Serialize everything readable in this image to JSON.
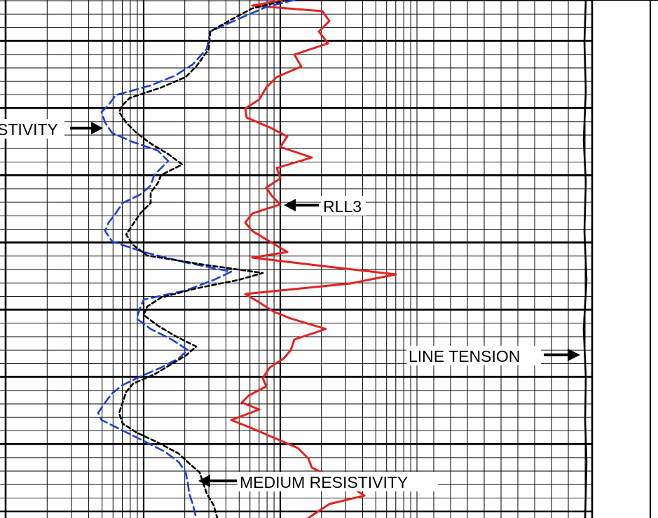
{
  "chart_data": {
    "type": "line",
    "annotations": {
      "deep": "STIVITY",
      "rll3": "RLL3",
      "tension": "LINE TENSION",
      "medium": "MEDIUM RESISTIVITY"
    },
    "series": [
      {
        "key": "rll3",
        "name": "RLL3",
        "color": "#e3231f",
        "style": "solid",
        "points": [
          [
            0,
            405
          ],
          [
            8,
            360
          ],
          [
            16,
            460
          ],
          [
            30,
            470
          ],
          [
            45,
            455
          ],
          [
            62,
            468
          ],
          [
            78,
            420
          ],
          [
            95,
            430
          ],
          [
            110,
            395
          ],
          [
            125,
            380
          ],
          [
            142,
            370
          ],
          [
            155,
            350
          ],
          [
            168,
            352
          ],
          [
            182,
            385
          ],
          [
            195,
            410
          ],
          [
            210,
            400
          ],
          [
            225,
            445
          ],
          [
            240,
            395
          ],
          [
            255,
            400
          ],
          [
            268,
            380
          ],
          [
            280,
            388
          ],
          [
            292,
            400
          ],
          [
            305,
            360
          ],
          [
            318,
            350
          ],
          [
            330,
            360
          ],
          [
            345,
            385
          ],
          [
            360,
            410
          ],
          [
            368,
            360
          ],
          [
            380,
            460
          ],
          [
            392,
            565
          ],
          [
            405,
            500
          ],
          [
            420,
            350
          ],
          [
            432,
            370
          ],
          [
            445,
            390
          ],
          [
            455,
            415
          ],
          [
            470,
            465
          ],
          [
            485,
            420
          ],
          [
            500,
            415
          ],
          [
            512,
            405
          ],
          [
            525,
            385
          ],
          [
            540,
            375
          ],
          [
            552,
            380
          ],
          [
            565,
            355
          ],
          [
            575,
            345
          ],
          [
            585,
            370
          ],
          [
            600,
            330
          ],
          [
            612,
            360
          ],
          [
            625,
            390
          ],
          [
            640,
            425
          ],
          [
            655,
            440
          ],
          [
            668,
            445
          ],
          [
            680,
            470
          ],
          [
            695,
            500
          ],
          [
            708,
            520
          ],
          [
            720,
            470
          ],
          [
            740,
            440
          ]
        ]
      },
      {
        "key": "deep",
        "name": "",
        "color": "#1f3fd1",
        "style": "dashed",
        "points": [
          [
            0,
            420
          ],
          [
            10,
            380
          ],
          [
            25,
            345
          ],
          [
            45,
            300
          ],
          [
            70,
            295
          ],
          [
            92,
            275
          ],
          [
            108,
            250
          ],
          [
            122,
            215
          ],
          [
            136,
            165
          ],
          [
            150,
            155
          ],
          [
            160,
            145
          ],
          [
            175,
            150
          ],
          [
            190,
            160
          ],
          [
            203,
            190
          ],
          [
            215,
            225
          ],
          [
            230,
            240
          ],
          [
            250,
            220
          ],
          [
            265,
            215
          ],
          [
            278,
            200
          ],
          [
            290,
            175
          ],
          [
            305,
            165
          ],
          [
            318,
            155
          ],
          [
            330,
            150
          ],
          [
            345,
            160
          ],
          [
            360,
            205
          ],
          [
            375,
            265
          ],
          [
            388,
            330
          ],
          [
            400,
            305
          ],
          [
            415,
            265
          ],
          [
            428,
            205
          ],
          [
            440,
            200
          ],
          [
            455,
            195
          ],
          [
            470,
            215
          ],
          [
            485,
            245
          ],
          [
            500,
            268
          ],
          [
            512,
            255
          ],
          [
            525,
            230
          ],
          [
            538,
            200
          ],
          [
            550,
            175
          ],
          [
            562,
            160
          ],
          [
            575,
            150
          ],
          [
            590,
            140
          ],
          [
            600,
            145
          ],
          [
            615,
            175
          ],
          [
            630,
            205
          ],
          [
            645,
            235
          ],
          [
            660,
            255
          ],
          [
            675,
            265
          ],
          [
            690,
            268
          ],
          [
            705,
            270
          ],
          [
            720,
            275
          ],
          [
            740,
            280
          ]
        ]
      },
      {
        "key": "medium",
        "name": "",
        "color": "#000000",
        "style": "dashed",
        "points": [
          [
            0,
            410
          ],
          [
            12,
            360
          ],
          [
            28,
            330
          ],
          [
            45,
            300
          ],
          [
            70,
            298
          ],
          [
            95,
            280
          ],
          [
            110,
            265
          ],
          [
            125,
            230
          ],
          [
            140,
            185
          ],
          [
            150,
            175
          ],
          [
            160,
            170
          ],
          [
            175,
            180
          ],
          [
            190,
            195
          ],
          [
            205,
            215
          ],
          [
            220,
            240
          ],
          [
            235,
            260
          ],
          [
            250,
            230
          ],
          [
            262,
            225
          ],
          [
            275,
            215
          ],
          [
            290,
            215
          ],
          [
            305,
            200
          ],
          [
            320,
            190
          ],
          [
            335,
            180
          ],
          [
            350,
            190
          ],
          [
            365,
            210
          ],
          [
            378,
            290
          ],
          [
            390,
            375
          ],
          [
            400,
            340
          ],
          [
            412,
            280
          ],
          [
            425,
            230
          ],
          [
            438,
            210
          ],
          [
            450,
            205
          ],
          [
            465,
            225
          ],
          [
            480,
            250
          ],
          [
            495,
            280
          ],
          [
            508,
            265
          ],
          [
            520,
            245
          ],
          [
            535,
            220
          ],
          [
            548,
            190
          ],
          [
            560,
            180
          ],
          [
            575,
            175
          ],
          [
            590,
            170
          ],
          [
            605,
            175
          ],
          [
            618,
            195
          ],
          [
            632,
            225
          ],
          [
            648,
            255
          ],
          [
            662,
            270
          ],
          [
            675,
            285
          ],
          [
            690,
            290
          ],
          [
            705,
            295
          ],
          [
            722,
            305
          ],
          [
            740,
            310
          ]
        ]
      },
      {
        "key": "tension",
        "name": "",
        "color": "#000000",
        "style": "solid",
        "points": [
          [
            0,
            836
          ],
          [
            60,
            834
          ],
          [
            130,
            836
          ],
          [
            200,
            833
          ],
          [
            260,
            836
          ],
          [
            330,
            834
          ],
          [
            400,
            837
          ],
          [
            470,
            833
          ],
          [
            540,
            836
          ],
          [
            600,
            835
          ],
          [
            660,
            837
          ],
          [
            740,
            835
          ]
        ]
      }
    ]
  }
}
